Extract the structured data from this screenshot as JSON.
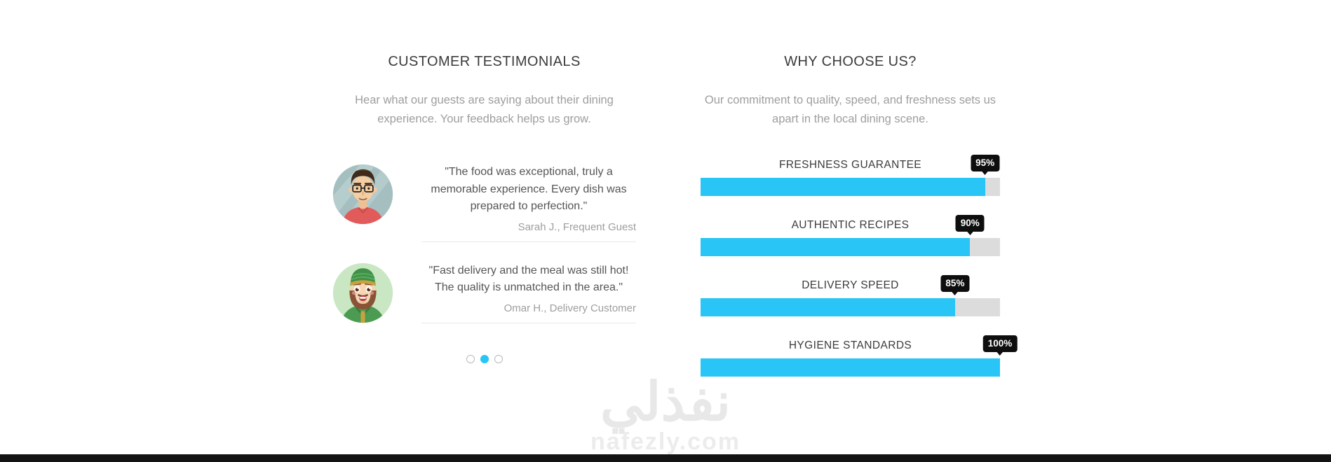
{
  "testimonials": {
    "title": "CUSTOMER TESTIMONIALS",
    "subtitle": "Hear what our guests are saying about their dining experience. Your feedback helps us grow.",
    "items": [
      {
        "quote": "\"The food was exceptional, truly a memorable experience. Every dish was prepared to perfection.\"",
        "author": "Sarah J., Frequent Guest",
        "avatar": "man-with-glasses-avatar"
      },
      {
        "quote": "\"Fast delivery and the meal was still hot! The quality is unmatched in the area.\"",
        "author": "Omar H., Delivery Customer",
        "avatar": "man-with-green-cap-avatar"
      }
    ],
    "pagination": {
      "dot_count": 3,
      "active_index": 1
    }
  },
  "why_choose": {
    "title": "WHY CHOOSE US?",
    "subtitle": "Our commitment to quality, speed, and freshness sets us apart in the local dining scene.",
    "skills": [
      {
        "label": "FRESHNESS GUARANTEE",
        "percent": 95,
        "percent_label": "95%"
      },
      {
        "label": "AUTHENTIC RECIPES",
        "percent": 90,
        "percent_label": "90%"
      },
      {
        "label": "DELIVERY SPEED",
        "percent": 85,
        "percent_label": "85%"
      },
      {
        "label": "HYGIENE STANDARDS",
        "percent": 100,
        "percent_label": "100%"
      }
    ]
  },
  "chart_data": {
    "type": "bar",
    "orientation": "horizontal",
    "title": "WHY CHOOSE US?",
    "categories": [
      "FRESHNESS GUARANTEE",
      "AUTHENTIC RECIPES",
      "DELIVERY SPEED",
      "HYGIENE STANDARDS"
    ],
    "values": [
      95,
      90,
      85,
      100
    ],
    "value_range": [
      0,
      100
    ],
    "value_suffix": "%",
    "bar_color": "#29c5f6",
    "track_color": "#dcdcdc",
    "label_badge_color": "#0e0e0e"
  },
  "watermark": {
    "arabic_text": "نفذلي",
    "latin_text": "nafezly.com"
  },
  "colors": {
    "accent_blue": "#29c5f6",
    "track_gray": "#dcdcdc",
    "badge_black": "#0e0e0e",
    "heading_text": "#3b3b3b",
    "muted_text": "#9e9e9e",
    "quote_text": "#555555",
    "divider": "#e9e9e9",
    "watermark_gray": "#e8e8e8",
    "bottom_strip": "#141414"
  }
}
